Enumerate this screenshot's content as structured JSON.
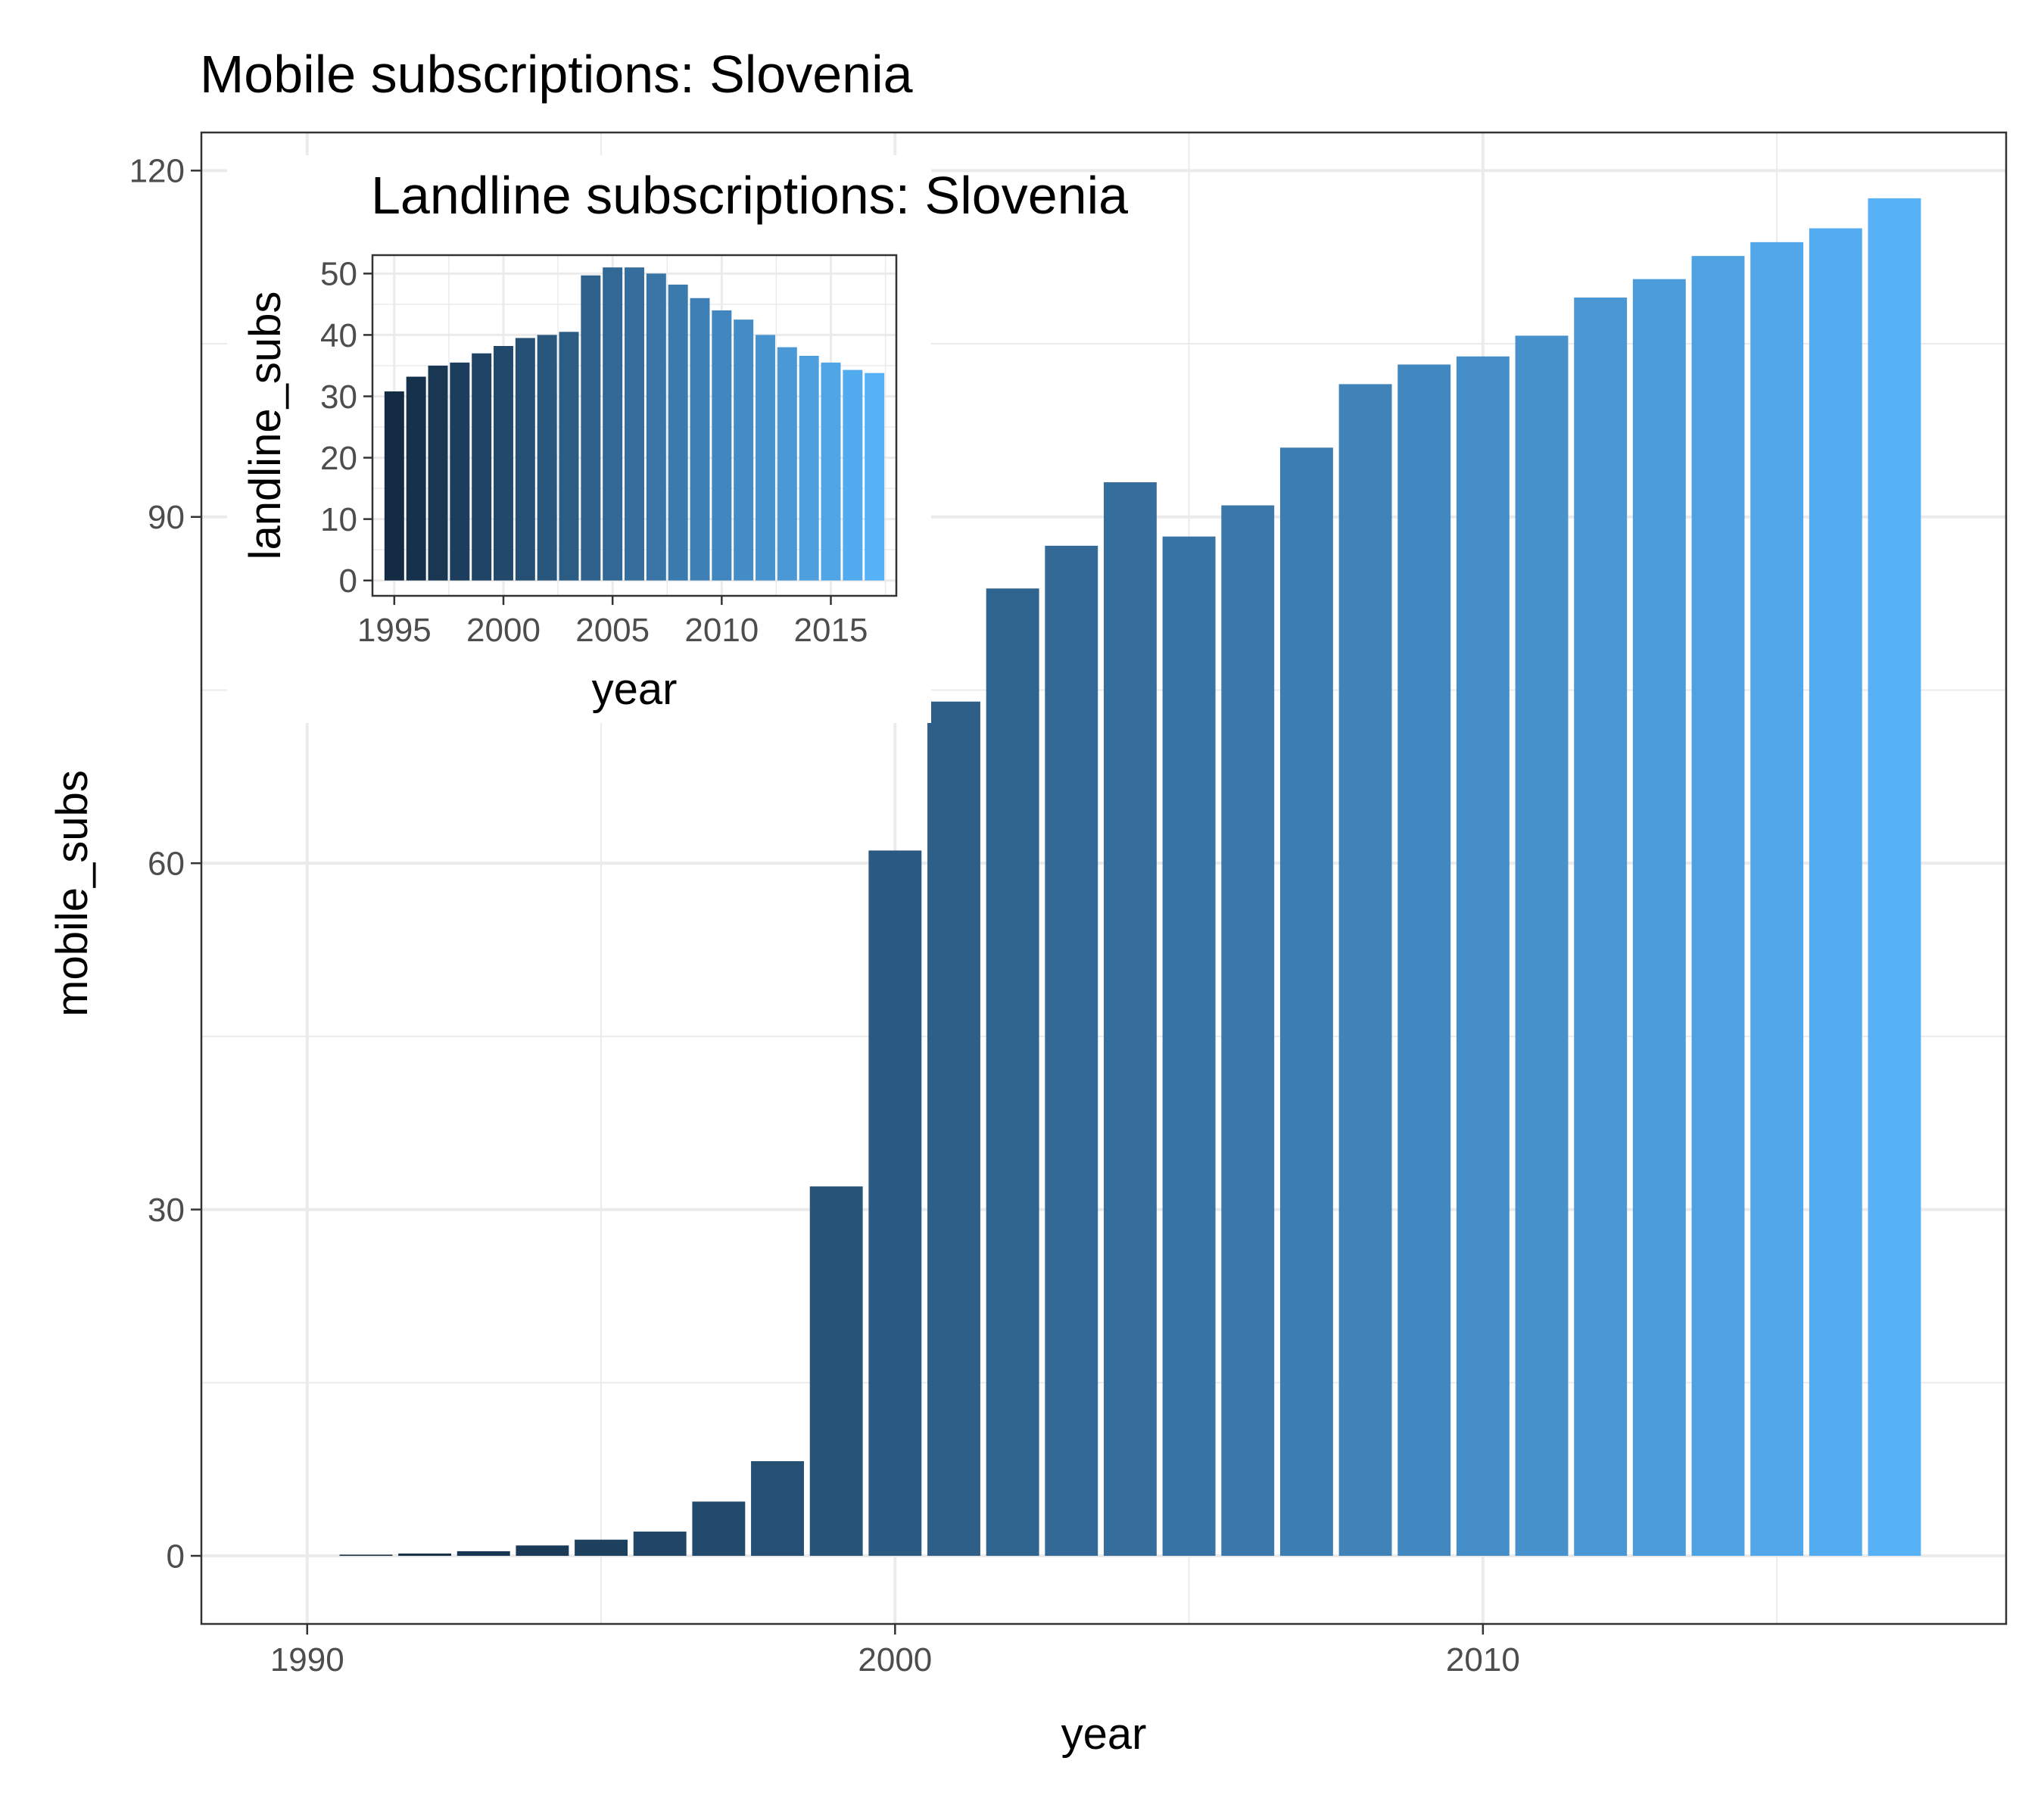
{
  "chart_data": [
    {
      "type": "bar",
      "title": "Mobile subscriptions: Slovenia",
      "xlabel": "year",
      "ylabel": "mobile_subs",
      "x": [
        1991,
        1992,
        1993,
        1994,
        1995,
        1996,
        1997,
        1998,
        1999,
        2000,
        2001,
        2002,
        2003,
        2004,
        2005,
        2006,
        2007,
        2008,
        2009,
        2010,
        2011,
        2012,
        2013,
        2014,
        2015,
        2016,
        2017
      ],
      "values": [
        0.1,
        0.2,
        0.4,
        0.9,
        1.4,
        2.1,
        4.7,
        8.2,
        32.0,
        61.1,
        74.0,
        83.8,
        87.5,
        93.0,
        88.3,
        91.0,
        96.0,
        101.5,
        103.2,
        103.9,
        105.7,
        109.0,
        110.6,
        112.6,
        113.8,
        115.0,
        117.6
      ],
      "xlim": [
        1988.2,
        2018.9
      ],
      "ylim": [
        -5.9,
        123.3
      ],
      "x_ticks": [
        1990,
        2000,
        2010
      ],
      "y_ticks": [
        0,
        30,
        60,
        90,
        120
      ],
      "grid": true,
      "legend": "none",
      "fill_gradient": [
        "#132b43",
        "#56b1f7"
      ]
    },
    {
      "type": "bar",
      "title": "Landline subscriptions: Slovenia",
      "xlabel": "year",
      "ylabel": "landline_subs",
      "x": [
        1995,
        1996,
        1997,
        1998,
        1999,
        2000,
        2001,
        2002,
        2003,
        2004,
        2005,
        2006,
        2007,
        2008,
        2009,
        2010,
        2011,
        2012,
        2013,
        2014,
        2015,
        2016,
        2017
      ],
      "values": [
        30.8,
        33.2,
        35.0,
        35.5,
        37.0,
        38.2,
        39.5,
        40.0,
        40.5,
        49.7,
        51.0,
        51.0,
        50.0,
        48.2,
        46.0,
        44.0,
        42.5,
        40.0,
        38.0,
        36.6,
        35.5,
        34.3,
        33.8
      ],
      "xlim": [
        1994.0,
        2018.0
      ],
      "ylim": [
        -2.5,
        53.0
      ],
      "x_ticks": [
        1995,
        2000,
        2005,
        2010,
        2015
      ],
      "y_ticks": [
        0,
        10,
        20,
        30,
        40,
        50
      ],
      "grid": true,
      "legend": "none",
      "fill_gradient": [
        "#132b43",
        "#56b1f7"
      ]
    }
  ]
}
